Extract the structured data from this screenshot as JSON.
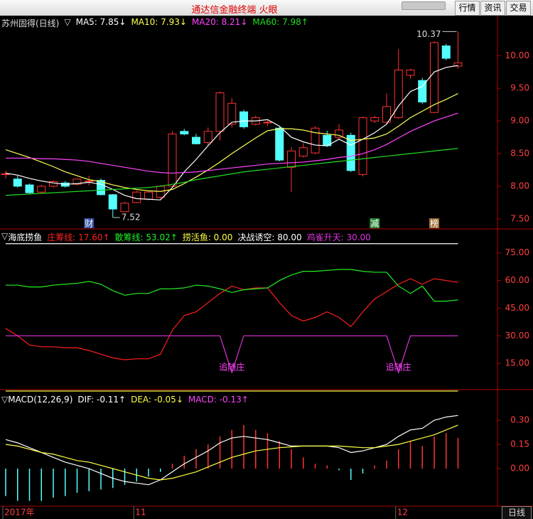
{
  "window": {
    "title": "通达信金融终端  火眼",
    "buttons": [
      "行情",
      "资讯",
      "交易"
    ]
  },
  "footer": {
    "period": "日线"
  },
  "chart_data": [
    {
      "type": "candlestick",
      "title": "苏州固得(日线)",
      "toggle": "▽",
      "toggle_position": "after",
      "open": [
        8.18,
        8.11,
        8.02,
        7.91,
        8.0,
        8.05,
        8.03,
        8.08,
        8.09,
        7.87,
        7.61,
        7.75,
        7.8,
        7.83,
        8.0,
        8.84,
        8.75,
        8.67,
        8.84,
        8.95,
        9.14,
        8.95,
        8.98,
        8.89,
        8.29,
        8.46,
        8.51,
        8.78,
        8.75,
        8.78,
        8.18,
        9.0,
        8.98,
        9.05,
        9.7,
        9.62,
        9.13,
        10.15,
        9.84
      ],
      "close": [
        8.19,
        8.0,
        7.9,
        8.0,
        8.07,
        8.0,
        8.11,
        8.08,
        7.87,
        7.65,
        7.74,
        7.91,
        7.91,
        8.0,
        8.8,
        8.8,
        8.65,
        8.84,
        9.43,
        9.27,
        8.91,
        9.05,
        8.98,
        8.4,
        8.54,
        8.59,
        8.89,
        8.62,
        8.86,
        8.24,
        9.05,
        9.05,
        9.22,
        9.78,
        9.78,
        9.29,
        10.2,
        9.96,
        9.89
      ],
      "high": [
        8.24,
        8.16,
        8.04,
        8.02,
        8.09,
        8.08,
        8.12,
        8.16,
        8.12,
        7.88,
        7.76,
        7.93,
        7.93,
        8.02,
        8.84,
        8.88,
        8.8,
        8.9,
        9.45,
        9.35,
        9.17,
        9.08,
        9.02,
        8.91,
        8.6,
        8.66,
        8.92,
        8.85,
        8.95,
        8.82,
        9.07,
        9.08,
        9.42,
        10.1,
        9.8,
        9.66,
        10.22,
        10.18,
        10.37
      ],
      "low": [
        8.12,
        7.98,
        7.88,
        7.9,
        7.98,
        7.98,
        8.01,
        8.01,
        7.86,
        7.52,
        7.6,
        7.74,
        7.78,
        7.8,
        7.99,
        8.78,
        8.64,
        8.62,
        8.7,
        8.9,
        8.88,
        8.93,
        8.92,
        8.38,
        7.91,
        8.44,
        8.49,
        8.6,
        8.72,
        8.22,
        8.15,
        8.97,
        8.95,
        9.03,
        9.65,
        9.26,
        9.12,
        9.93,
        9.8
      ],
      "up_color": "#ff3232",
      "down_color": "#54ffff",
      "series": [
        {
          "name": "MA5: 7.85↓",
          "color": "#ffffff",
          "values": [
            8.2,
            8.17,
            8.12,
            8.08,
            8.05,
            8.03,
            8.04,
            8.06,
            8.03,
            7.95,
            7.86,
            7.81,
            7.8,
            7.79,
            7.98,
            8.22,
            8.41,
            8.62,
            8.82,
            8.98,
            9.0,
            9.0,
            9.02,
            8.92,
            8.75,
            8.68,
            8.63,
            8.62,
            8.72,
            8.63,
            8.72,
            8.82,
            8.95,
            9.23,
            9.45,
            9.53,
            9.75,
            9.82,
            9.85
          ]
        },
        {
          "name": "MA10: 7.93↓",
          "color": "#ffff55",
          "values": [
            8.56,
            8.5,
            8.44,
            8.37,
            8.3,
            8.22,
            8.16,
            8.1,
            8.07,
            8.02,
            7.98,
            7.95,
            7.93,
            7.92,
            7.95,
            8.04,
            8.14,
            8.25,
            8.37,
            8.5,
            8.62,
            8.74,
            8.85,
            8.88,
            8.88,
            8.86,
            8.82,
            8.8,
            8.78,
            8.7,
            8.72,
            8.74,
            8.8,
            8.92,
            9.05,
            9.15,
            9.25,
            9.33,
            9.42
          ]
        },
        {
          "name": "MA20: 8.21↓",
          "color": "#ff44ff",
          "values": [
            8.43,
            8.43,
            8.43,
            8.42,
            8.42,
            8.41,
            8.4,
            8.38,
            8.35,
            8.32,
            8.29,
            8.26,
            8.23,
            8.21,
            8.2,
            8.21,
            8.22,
            8.24,
            8.26,
            8.28,
            8.3,
            8.32,
            8.34,
            8.35,
            8.36,
            8.37,
            8.39,
            8.41,
            8.44,
            8.46,
            8.5,
            8.56,
            8.64,
            8.74,
            8.84,
            8.92,
            9.0,
            9.06,
            9.12
          ]
        },
        {
          "name": "MA60: 7.98↑",
          "color": "#22dd22",
          "values": [
            7.86,
            7.87,
            7.88,
            7.89,
            7.9,
            7.91,
            7.92,
            7.93,
            7.94,
            7.95,
            7.96,
            7.97,
            7.98,
            8.0,
            8.03,
            8.06,
            8.1,
            8.13,
            8.16,
            8.19,
            8.22,
            8.24,
            8.26,
            8.28,
            8.3,
            8.32,
            8.34,
            8.36,
            8.38,
            8.4,
            8.42,
            8.44,
            8.46,
            8.48,
            8.5,
            8.52,
            8.54,
            8.56,
            8.58
          ]
        }
      ],
      "ylim": [
        7.4,
        10.45
      ],
      "yticks": [
        {
          "value": 7.5,
          "label": "7.50"
        },
        {
          "value": 8,
          "label": "8.00"
        },
        {
          "value": 8.5,
          "label": "8.50"
        },
        {
          "value": 9,
          "label": "9.00"
        },
        {
          "value": 9.5,
          "label": "9.50"
        },
        {
          "value": 10,
          "label": "10.00"
        }
      ],
      "markers": [
        null,
        null,
        null,
        null,
        null,
        null,
        null,
        "财",
        null,
        null,
        null,
        null,
        null,
        null,
        null,
        null,
        null,
        null,
        null,
        null,
        null,
        null,
        null,
        null,
        null,
        null,
        null,
        null,
        null,
        null,
        null,
        "减",
        null,
        null,
        null,
        null,
        "榜",
        null,
        null
      ],
      "marker_colors": [
        null,
        null,
        null,
        null,
        null,
        null,
        null,
        "#3050a0",
        null,
        null,
        null,
        null,
        null,
        null,
        null,
        null,
        null,
        null,
        null,
        null,
        null,
        null,
        null,
        null,
        null,
        null,
        null,
        null,
        null,
        null,
        null,
        "#2e8b3a",
        null,
        null,
        null,
        null,
        "#a0703a",
        null,
        null
      ]
    },
    {
      "type": "line",
      "title": "海底捞鱼",
      "toggle": "▽",
      "toggle_position": "before",
      "title_color": "#ffffff",
      "series": [
        {
          "name": "庄筹线: 17.60↑",
          "color": "#ff2020",
          "values": [
            34,
            30,
            25,
            24,
            24,
            23.5,
            23.5,
            22,
            20,
            18,
            17,
            17.5,
            17.5,
            20,
            33,
            41,
            43,
            48,
            53,
            57,
            55,
            56,
            56,
            48,
            41,
            38,
            40,
            43,
            40,
            35,
            43,
            50,
            54,
            58,
            61,
            58,
            61,
            60,
            59
          ]
        },
        {
          "name": "散筹线: 53.02↑",
          "color": "#22ee22",
          "values": [
            57.5,
            57.5,
            56.5,
            56.5,
            57.5,
            58,
            58.5,
            59.5,
            58,
            54.5,
            52,
            53,
            53,
            55.5,
            55.5,
            56,
            57.5,
            57,
            55.5,
            53.5,
            55,
            55.5,
            56,
            60,
            63,
            65,
            65,
            65.5,
            66,
            66,
            65,
            64.5,
            64.5,
            57,
            53,
            57,
            48.8,
            48.8,
            49.5
          ]
        },
        {
          "name": "捞活鱼: 0.00",
          "color": "#ffff44",
          "values": [
            0,
            0,
            0,
            0,
            0,
            0,
            0,
            0,
            0,
            0,
            0,
            0,
            0,
            0,
            0,
            0,
            0,
            0,
            0,
            0,
            0,
            0,
            0,
            0,
            0,
            0,
            0,
            0,
            0,
            0,
            0,
            0,
            0,
            0,
            0,
            0,
            0,
            0,
            0
          ]
        },
        {
          "name": "决战诱空: 80.00",
          "color": "#ffffff",
          "values": [
            80,
            80,
            80,
            80,
            80,
            80,
            80,
            80,
            80,
            80,
            80,
            80,
            80,
            80,
            80,
            80,
            80,
            80,
            80,
            80,
            80,
            80,
            80,
            80,
            80,
            80,
            80,
            80,
            80,
            80,
            80,
            80,
            80,
            80,
            80,
            80,
            80,
            80,
            80
          ]
        },
        {
          "name": "鸡雀升天: 30.00",
          "color": "#dd33dd",
          "values": [
            30,
            30,
            30,
            30,
            30,
            30,
            30,
            30,
            30,
            30,
            30,
            30,
            30,
            30,
            30,
            30,
            30,
            30,
            30,
            10,
            30,
            30,
            30,
            30,
            30,
            30,
            30,
            30,
            30,
            30,
            30,
            30,
            30,
            10,
            30,
            30,
            30,
            30,
            30
          ]
        }
      ],
      "ylim": [
        0,
        83
      ],
      "yticks": [
        {
          "value": 15,
          "label": "15.00"
        },
        {
          "value": 30,
          "label": "30.00"
        },
        {
          "value": 45,
          "label": "45.00"
        },
        {
          "value": 60,
          "label": "60.00"
        },
        {
          "value": 75,
          "label": "75.00"
        }
      ],
      "markers": [
        null,
        null,
        null,
        null,
        null,
        null,
        null,
        null,
        null,
        null,
        null,
        null,
        null,
        null,
        null,
        null,
        null,
        null,
        null,
        "追随庄",
        null,
        null,
        null,
        null,
        null,
        null,
        null,
        null,
        null,
        null,
        null,
        null,
        null,
        "追随庄",
        null,
        null,
        null,
        null,
        null
      ],
      "marker_color": "#ff44ff"
    },
    {
      "type": "macd",
      "title": "MACD(12,26,9)",
      "toggle": "▽",
      "toggle_position": "before",
      "title_color": "#ffffff",
      "categories": [
        "2017年",
        null,
        null,
        null,
        null,
        null,
        null,
        null,
        null,
        null,
        null,
        "11",
        null,
        null,
        null,
        null,
        null,
        null,
        null,
        null,
        null,
        null,
        null,
        null,
        null,
        null,
        null,
        null,
        null,
        null,
        null,
        null,
        null,
        "12",
        null,
        null,
        null,
        null,
        null
      ],
      "series": [
        {
          "name": "DIF: -0.11↑",
          "color": "#ffffff",
          "values": [
            0.18,
            0.16,
            0.13,
            0.1,
            0.07,
            0.04,
            0.02,
            0.0,
            -0.03,
            -0.06,
            -0.08,
            -0.09,
            -0.1,
            -0.07,
            -0.02,
            0.03,
            0.07,
            0.11,
            0.16,
            0.19,
            0.2,
            0.19,
            0.18,
            0.16,
            0.14,
            0.14,
            0.14,
            0.14,
            0.13,
            0.1,
            0.11,
            0.13,
            0.15,
            0.2,
            0.24,
            0.25,
            0.3,
            0.32,
            0.33
          ]
        },
        {
          "name": "DEA: -0.05↓",
          "color": "#ffff44",
          "values": [
            0.15,
            0.14,
            0.12,
            0.1,
            0.09,
            0.07,
            0.05,
            0.04,
            0.02,
            0.0,
            -0.02,
            -0.04,
            -0.06,
            -0.07,
            -0.06,
            -0.04,
            -0.02,
            0.01,
            0.04,
            0.07,
            0.09,
            0.11,
            0.12,
            0.13,
            0.135,
            0.14,
            0.14,
            0.14,
            0.14,
            0.135,
            0.13,
            0.13,
            0.14,
            0.15,
            0.17,
            0.19,
            0.21,
            0.24,
            0.27
          ]
        },
        {
          "name": "MACD: -0.13↑",
          "color": "#ff44ff",
          "style": "bar",
          "values": [
            -0.17,
            -0.2,
            -0.2,
            -0.2,
            -0.18,
            -0.17,
            -0.15,
            -0.14,
            -0.13,
            -0.12,
            -0.1,
            -0.08,
            -0.05,
            -0.02,
            0.03,
            0.08,
            0.12,
            0.15,
            0.2,
            0.24,
            0.27,
            0.24,
            0.22,
            0.17,
            0.12,
            0.07,
            0.03,
            0.02,
            -0.01,
            -0.07,
            -0.03,
            0.02,
            0.05,
            0.12,
            0.17,
            0.14,
            0.2,
            0.22,
            0.19
          ]
        }
      ],
      "up_color": "#ff3232",
      "down_color": "#54ffff",
      "ylim": [
        -0.22,
        0.38
      ],
      "yticks": [
        {
          "value": 0,
          "label": "0.00"
        },
        {
          "value": 0.15,
          "label": "0.15"
        },
        {
          "value": 0.3,
          "label": "0.30"
        }
      ]
    }
  ]
}
